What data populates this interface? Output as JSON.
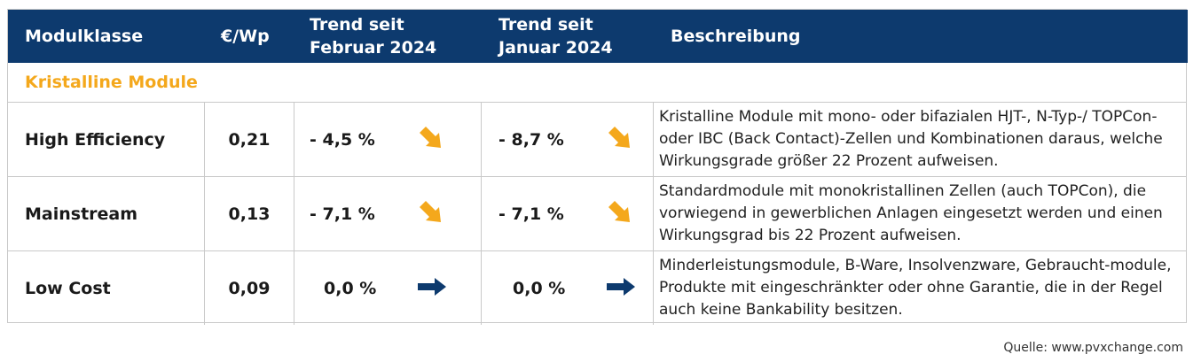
{
  "header": {
    "col_modulklasse": "Modulklasse",
    "col_price": "€/Wp",
    "col_trend_feb_line1": "Trend seit",
    "col_trend_feb_line2": "Februar 2024",
    "col_trend_jan_line1": "Trend seit",
    "col_trend_jan_line2": "Januar 2024",
    "col_description": "Beschreibung"
  },
  "section_title": "Kristalline Module",
  "rows": [
    {
      "name": "High Efficiency",
      "price": "0,21",
      "trend_feb": "- 4,5 %",
      "trend_feb_icon": "arrow-down-right-icon",
      "trend_jan": "- 8,7 %",
      "trend_jan_icon": "arrow-down-right-icon",
      "description": "Kristalline Module mit mono- oder bifazialen HJT-, N-Typ-/ TOPCon- oder IBC (Back Contact)-Zellen und Kombinationen daraus, welche Wirkungsgrade größer 22 Prozent aufweisen."
    },
    {
      "name": "Mainstream",
      "price": "0,13",
      "trend_feb": "- 7,1 %",
      "trend_feb_icon": "arrow-down-right-icon",
      "trend_jan": "- 7,1 %",
      "trend_jan_icon": "arrow-down-right-icon",
      "description": "Standardmodule mit monokristallinen Zellen (auch TOPCon), die vorwiegend in gewerblichen Anlagen eingesetzt werden und einen Wirkungsgrad bis 22 Prozent aufweisen."
    },
    {
      "name": "Low Cost",
      "price": "0,09",
      "trend_feb": "0,0 %",
      "trend_feb_icon": "arrow-right-icon",
      "trend_jan": "0,0 %",
      "trend_jan_icon": "arrow-right-icon",
      "description": "Minderleistungsmodule, B-Ware, Insolvenzware, Gebraucht-module, Produkte mit eingeschränkter oder ohne Garantie, die in der Regel auch keine Bankability besitzen."
    }
  ],
  "source": "Quelle: www.pvxchange.com",
  "colors": {
    "header_bg": "#0d3a6e",
    "accent_orange": "#f4a81c",
    "arrow_down": "#f4a81c",
    "arrow_flat": "#0d3a6e"
  }
}
